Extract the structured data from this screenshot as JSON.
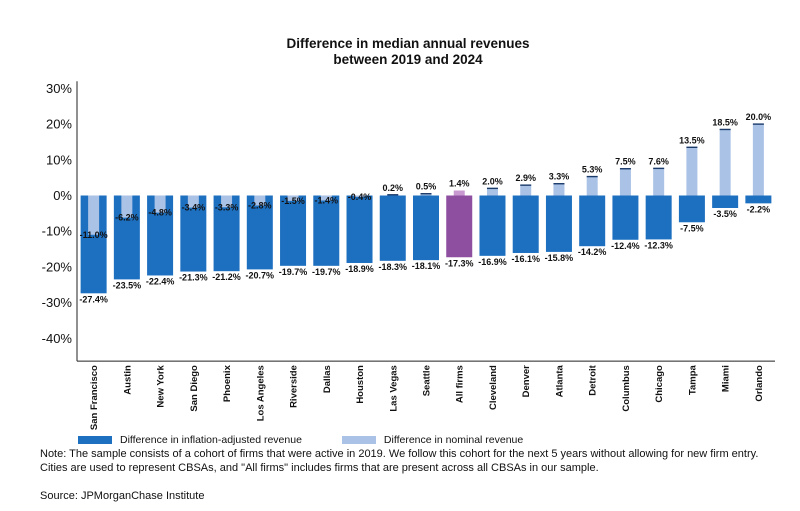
{
  "colors": {
    "real": "#1d6fc0",
    "nominal": "#a9c2e6",
    "highlight_real": "#8f4fa0",
    "highlight_nominal": "#c898d0",
    "highlight_text": "#9b4fa6"
  },
  "chart_data": {
    "type": "bar",
    "title": [
      "Difference in median annual revenues",
      "between 2019 and 2024"
    ],
    "categories": [
      "San Francisco",
      "Austin",
      "New York",
      "San Diego",
      "Phoenix",
      "Los Angeles",
      "Riverside",
      "Dallas",
      "Houston",
      "Las Vegas",
      "Seattle",
      "All firms",
      "Cleveland",
      "Denver",
      "Atlanta",
      "Detroit",
      "Columbus",
      "Chicago",
      "Tampa",
      "Miami",
      "Orlando"
    ],
    "highlight_category": "All firms",
    "series": [
      {
        "name": "Difference in inflation-adjusted revenue",
        "values": [
          -27.4,
          -23.5,
          -22.4,
          -21.3,
          -21.2,
          -20.7,
          -19.7,
          -19.7,
          -18.9,
          -18.3,
          -18.1,
          -17.3,
          -16.9,
          -16.1,
          -15.8,
          -14.2,
          -12.4,
          -12.3,
          -7.5,
          -3.5,
          -2.2
        ],
        "labels": [
          "-27.4%",
          "-23.5%",
          "-22.4%",
          "-21.3%",
          "-21.2%",
          "-20.7%",
          "-19.7%",
          "-19.7%",
          "-18.9%",
          "-18.3%",
          "-18.1%",
          "-17.3%",
          "-16.9%",
          "-16.1%",
          "-15.8%",
          "-14.2%",
          "-12.4%",
          "-12.3%",
          "-7.5%",
          "-3.5%",
          "-2.2%"
        ]
      },
      {
        "name": "Difference in nominal revenue",
        "values": [
          -11.0,
          -6.2,
          -4.8,
          -3.4,
          -3.3,
          -2.8,
          -1.5,
          -1.4,
          -0.4,
          0.2,
          0.5,
          1.4,
          2.0,
          2.9,
          3.3,
          5.3,
          7.5,
          7.6,
          13.5,
          18.5,
          20.0
        ],
        "labels": [
          "-11.0%",
          "-6.2%",
          "-4.8%",
          "-3.4%",
          "-3.3%",
          "-2.8%",
          "-1.5%",
          "-1.4%",
          "-0.4%",
          "0.2%",
          "0.5%",
          "1.4%",
          "2.0%",
          "2.9%",
          "3.3%",
          "5.3%",
          "7.5%",
          "7.6%",
          "13.5%",
          "18.5%",
          "20.0%"
        ]
      }
    ],
    "yticks": [
      30,
      20,
      10,
      0,
      -10,
      -20,
      -30,
      -40
    ],
    "ytick_labels": [
      "30%",
      "20%",
      "10%",
      "0%",
      "-10%",
      "-20%",
      "-30%",
      "-40%"
    ],
    "ylim": [
      -45,
      32
    ],
    "grid": false,
    "legend_position": "bottom-left"
  },
  "note": "Note: The sample consists of a cohort of firms that were active in 2019. We follow this cohort for the next 5 years without allowing for new firm entry. Cities are used to represent CBSAs, and \"All firms\" includes firms that are present across all CBSAs in our sample.",
  "source": "Source: JPMorganChase Institute"
}
